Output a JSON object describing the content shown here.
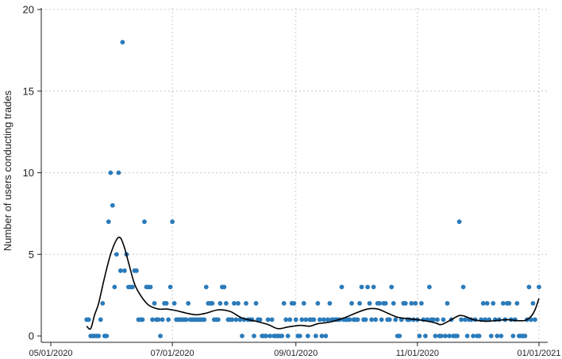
{
  "chart_data": {
    "type": "scatter",
    "title": "",
    "ylabel": "Number of users conducting trades",
    "xlabel": "",
    "ylim": [
      0,
      20
    ],
    "xlim": [
      "2020-05-01",
      "2021-01-01"
    ],
    "yticks": [
      0,
      5,
      10,
      15,
      20
    ],
    "xticks": [
      "05/01/2020",
      "07/01/2020",
      "09/01/2020",
      "11/01/2020",
      "01/01/2021"
    ],
    "xtick_dates": [
      "2020-05-01",
      "2020-07-01",
      "2020-09-01",
      "2020-11-01",
      "2021-01-01"
    ],
    "grid": true,
    "point_color": "#2b7bba",
    "trend_color": "#000000",
    "points": [
      [
        "2020-05-19",
        1
      ],
      [
        "2020-05-20",
        1
      ],
      [
        "2020-05-21",
        0
      ],
      [
        "2020-05-22",
        0
      ],
      [
        "2020-05-23",
        0
      ],
      [
        "2020-05-24",
        0
      ],
      [
        "2020-05-25",
        0
      ],
      [
        "2020-05-26",
        1
      ],
      [
        "2020-05-27",
        2
      ],
      [
        "2020-05-28",
        0
      ],
      [
        "2020-05-29",
        0
      ],
      [
        "2020-05-30",
        7
      ],
      [
        "2020-05-31",
        10
      ],
      [
        "2020-06-01",
        8
      ],
      [
        "2020-06-02",
        3
      ],
      [
        "2020-06-03",
        5
      ],
      [
        "2020-06-04",
        10
      ],
      [
        "2020-06-05",
        4
      ],
      [
        "2020-06-06",
        18
      ],
      [
        "2020-06-07",
        4
      ],
      [
        "2020-06-08",
        5
      ],
      [
        "2020-06-09",
        3
      ],
      [
        "2020-06-10",
        3
      ],
      [
        "2020-06-11",
        3
      ],
      [
        "2020-06-12",
        4
      ],
      [
        "2020-06-13",
        4
      ],
      [
        "2020-06-14",
        1
      ],
      [
        "2020-06-15",
        1
      ],
      [
        "2020-06-16",
        1
      ],
      [
        "2020-06-17",
        7
      ],
      [
        "2020-06-18",
        3
      ],
      [
        "2020-06-19",
        3
      ],
      [
        "2020-06-20",
        3
      ],
      [
        "2020-06-21",
        1
      ],
      [
        "2020-06-22",
        2
      ],
      [
        "2020-06-23",
        1
      ],
      [
        "2020-06-24",
        1
      ],
      [
        "2020-06-25",
        0
      ],
      [
        "2020-06-26",
        1
      ],
      [
        "2020-06-27",
        2
      ],
      [
        "2020-06-28",
        2
      ],
      [
        "2020-06-29",
        1
      ],
      [
        "2020-06-30",
        3
      ],
      [
        "2020-07-01",
        7
      ],
      [
        "2020-07-02",
        2
      ],
      [
        "2020-07-03",
        1
      ],
      [
        "2020-07-04",
        1
      ],
      [
        "2020-07-05",
        1
      ],
      [
        "2020-07-06",
        1
      ],
      [
        "2020-07-07",
        1
      ],
      [
        "2020-07-08",
        1
      ],
      [
        "2020-07-09",
        2
      ],
      [
        "2020-07-10",
        1
      ],
      [
        "2020-07-11",
        1
      ],
      [
        "2020-07-12",
        1
      ],
      [
        "2020-07-13",
        1
      ],
      [
        "2020-07-14",
        1
      ],
      [
        "2020-07-15",
        1
      ],
      [
        "2020-07-16",
        1
      ],
      [
        "2020-07-17",
        1
      ],
      [
        "2020-07-18",
        3
      ],
      [
        "2020-07-19",
        2
      ],
      [
        "2020-07-20",
        2
      ],
      [
        "2020-07-21",
        2
      ],
      [
        "2020-07-22",
        1
      ],
      [
        "2020-07-23",
        1
      ],
      [
        "2020-07-24",
        1
      ],
      [
        "2020-07-25",
        2
      ],
      [
        "2020-07-26",
        3
      ],
      [
        "2020-07-27",
        3
      ],
      [
        "2020-07-28",
        2
      ],
      [
        "2020-07-29",
        1
      ],
      [
        "2020-07-30",
        1
      ],
      [
        "2020-07-31",
        1
      ],
      [
        "2020-08-01",
        2
      ],
      [
        "2020-08-02",
        1
      ],
      [
        "2020-08-03",
        2
      ],
      [
        "2020-08-04",
        1
      ],
      [
        "2020-08-05",
        0
      ],
      [
        "2020-08-06",
        1
      ],
      [
        "2020-08-07",
        2
      ],
      [
        "2020-08-08",
        1
      ],
      [
        "2020-08-09",
        1
      ],
      [
        "2020-08-10",
        1
      ],
      [
        "2020-08-11",
        0
      ],
      [
        "2020-08-12",
        2
      ],
      [
        "2020-08-13",
        1
      ],
      [
        "2020-08-14",
        1
      ],
      [
        "2020-08-15",
        0
      ],
      [
        "2020-08-16",
        0
      ],
      [
        "2020-08-17",
        0
      ],
      [
        "2020-08-18",
        1
      ],
      [
        "2020-08-19",
        0
      ],
      [
        "2020-08-20",
        1
      ],
      [
        "2020-08-21",
        0
      ],
      [
        "2020-08-22",
        0
      ],
      [
        "2020-08-23",
        0
      ],
      [
        "2020-08-24",
        0
      ],
      [
        "2020-08-25",
        0
      ],
      [
        "2020-08-26",
        2
      ],
      [
        "2020-08-27",
        1
      ],
      [
        "2020-08-28",
        0
      ],
      [
        "2020-08-29",
        1
      ],
      [
        "2020-08-30",
        2
      ],
      [
        "2020-08-31",
        2
      ],
      [
        "2020-09-01",
        1
      ],
      [
        "2020-09-02",
        0
      ],
      [
        "2020-09-03",
        0
      ],
      [
        "2020-09-04",
        1
      ],
      [
        "2020-09-05",
        2
      ],
      [
        "2020-09-06",
        1
      ],
      [
        "2020-09-07",
        0
      ],
      [
        "2020-09-08",
        1
      ],
      [
        "2020-09-09",
        1
      ],
      [
        "2020-09-10",
        1
      ],
      [
        "2020-09-11",
        0
      ],
      [
        "2020-09-12",
        2
      ],
      [
        "2020-09-13",
        1
      ],
      [
        "2020-09-14",
        0
      ],
      [
        "2020-09-15",
        1
      ],
      [
        "2020-09-16",
        0
      ],
      [
        "2020-09-17",
        1
      ],
      [
        "2020-09-18",
        2
      ],
      [
        "2020-09-19",
        1
      ],
      [
        "2020-09-20",
        1
      ],
      [
        "2020-09-21",
        1
      ],
      [
        "2020-09-22",
        1
      ],
      [
        "2020-09-23",
        1
      ],
      [
        "2020-09-24",
        3
      ],
      [
        "2020-09-25",
        1
      ],
      [
        "2020-09-26",
        1
      ],
      [
        "2020-09-27",
        1
      ],
      [
        "2020-09-28",
        1
      ],
      [
        "2020-09-29",
        2
      ],
      [
        "2020-09-30",
        1
      ],
      [
        "2020-10-01",
        1
      ],
      [
        "2020-10-02",
        1
      ],
      [
        "2020-10-03",
        2
      ],
      [
        "2020-10-04",
        3
      ],
      [
        "2020-10-05",
        1
      ],
      [
        "2020-10-06",
        1
      ],
      [
        "2020-10-07",
        3
      ],
      [
        "2020-10-08",
        2
      ],
      [
        "2020-10-09",
        1
      ],
      [
        "2020-10-10",
        3
      ],
      [
        "2020-10-11",
        1
      ],
      [
        "2020-10-12",
        2
      ],
      [
        "2020-10-13",
        2
      ],
      [
        "2020-10-14",
        1
      ],
      [
        "2020-10-15",
        2
      ],
      [
        "2020-10-16",
        2
      ],
      [
        "2020-10-17",
        1
      ],
      [
        "2020-10-18",
        1
      ],
      [
        "2020-10-19",
        3
      ],
      [
        "2020-10-20",
        2
      ],
      [
        "2020-10-21",
        1
      ],
      [
        "2020-10-22",
        0
      ],
      [
        "2020-10-23",
        0
      ],
      [
        "2020-10-24",
        1
      ],
      [
        "2020-10-25",
        2
      ],
      [
        "2020-10-26",
        2
      ],
      [
        "2020-10-27",
        1
      ],
      [
        "2020-10-28",
        1
      ],
      [
        "2020-10-29",
        2
      ],
      [
        "2020-10-30",
        1
      ],
      [
        "2020-10-31",
        2
      ],
      [
        "2020-11-01",
        1
      ],
      [
        "2020-11-02",
        0
      ],
      [
        "2020-11-03",
        2
      ],
      [
        "2020-11-04",
        1
      ],
      [
        "2020-11-05",
        0
      ],
      [
        "2020-11-06",
        1
      ],
      [
        "2020-11-07",
        3
      ],
      [
        "2020-11-08",
        1
      ],
      [
        "2020-11-09",
        1
      ],
      [
        "2020-11-10",
        0
      ],
      [
        "2020-11-11",
        1
      ],
      [
        "2020-11-12",
        0
      ],
      [
        "2020-11-13",
        0
      ],
      [
        "2020-11-14",
        1
      ],
      [
        "2020-11-15",
        0
      ],
      [
        "2020-11-16",
        2
      ],
      [
        "2020-11-17",
        0
      ],
      [
        "2020-11-18",
        1
      ],
      [
        "2020-11-19",
        0
      ],
      [
        "2020-11-20",
        0
      ],
      [
        "2020-11-21",
        0
      ],
      [
        "2020-11-22",
        7
      ],
      [
        "2020-11-23",
        1
      ],
      [
        "2020-11-24",
        3
      ],
      [
        "2020-11-25",
        1
      ],
      [
        "2020-11-26",
        0
      ],
      [
        "2020-11-27",
        1
      ],
      [
        "2020-11-28",
        1
      ],
      [
        "2020-11-29",
        0
      ],
      [
        "2020-11-30",
        1
      ],
      [
        "2020-12-01",
        0
      ],
      [
        "2020-12-02",
        0
      ],
      [
        "2020-12-03",
        1
      ],
      [
        "2020-12-04",
        2
      ],
      [
        "2020-12-05",
        1
      ],
      [
        "2020-12-06",
        2
      ],
      [
        "2020-12-07",
        1
      ],
      [
        "2020-12-08",
        0
      ],
      [
        "2020-12-09",
        2
      ],
      [
        "2020-12-10",
        1
      ],
      [
        "2020-12-11",
        0
      ],
      [
        "2020-12-12",
        1
      ],
      [
        "2020-12-13",
        0
      ],
      [
        "2020-12-14",
        2
      ],
      [
        "2020-12-15",
        1
      ],
      [
        "2020-12-16",
        2
      ],
      [
        "2020-12-17",
        2
      ],
      [
        "2020-12-18",
        1
      ],
      [
        "2020-12-19",
        0
      ],
      [
        "2020-12-20",
        1
      ],
      [
        "2020-12-21",
        2
      ],
      [
        "2020-12-22",
        0
      ],
      [
        "2020-12-23",
        0
      ],
      [
        "2020-12-24",
        0
      ],
      [
        "2020-12-25",
        0
      ],
      [
        "2020-12-26",
        1
      ],
      [
        "2020-12-27",
        3
      ],
      [
        "2020-12-28",
        1
      ],
      [
        "2020-12-29",
        2
      ],
      [
        "2020-12-30",
        1
      ],
      [
        "2021-01-01",
        3
      ]
    ],
    "trend": [
      [
        "2020-05-19",
        0.6
      ],
      [
        "2020-05-21",
        0.45
      ],
      [
        "2020-05-23",
        1.3
      ],
      [
        "2020-05-25",
        2.0
      ],
      [
        "2020-05-28",
        3.6
      ],
      [
        "2020-05-31",
        5.0
      ],
      [
        "2020-06-03",
        5.9
      ],
      [
        "2020-06-05",
        6.0
      ],
      [
        "2020-06-07",
        5.4
      ],
      [
        "2020-06-09",
        4.5
      ],
      [
        "2020-06-12",
        3.2
      ],
      [
        "2020-06-15",
        2.5
      ],
      [
        "2020-06-19",
        1.9
      ],
      [
        "2020-06-24",
        1.65
      ],
      [
        "2020-06-28",
        1.65
      ],
      [
        "2020-07-03",
        1.55
      ],
      [
        "2020-07-08",
        1.4
      ],
      [
        "2020-07-13",
        1.3
      ],
      [
        "2020-07-18",
        1.4
      ],
      [
        "2020-07-24",
        1.6
      ],
      [
        "2020-07-30",
        1.5
      ],
      [
        "2020-08-05",
        1.1
      ],
      [
        "2020-08-12",
        0.9
      ],
      [
        "2020-08-18",
        0.7
      ],
      [
        "2020-08-23",
        0.45
      ],
      [
        "2020-08-28",
        0.55
      ],
      [
        "2020-09-03",
        0.65
      ],
      [
        "2020-09-08",
        0.6
      ],
      [
        "2020-09-12",
        0.75
      ],
      [
        "2020-09-18",
        0.85
      ],
      [
        "2020-09-25",
        1.1
      ],
      [
        "2020-10-01",
        1.4
      ],
      [
        "2020-10-07",
        1.65
      ],
      [
        "2020-10-12",
        1.65
      ],
      [
        "2020-10-17",
        1.4
      ],
      [
        "2020-10-22",
        1.15
      ],
      [
        "2020-10-28",
        1.05
      ],
      [
        "2020-11-04",
        0.95
      ],
      [
        "2020-11-10",
        0.8
      ],
      [
        "2020-11-13",
        0.7
      ],
      [
        "2020-11-18",
        1.0
      ],
      [
        "2020-11-22",
        1.25
      ],
      [
        "2020-11-25",
        1.2
      ],
      [
        "2020-11-29",
        1.0
      ],
      [
        "2020-12-05",
        0.9
      ],
      [
        "2020-12-11",
        0.95
      ],
      [
        "2020-12-16",
        1.0
      ],
      [
        "2020-12-20",
        0.95
      ],
      [
        "2020-12-25",
        0.95
      ],
      [
        "2020-12-28",
        1.2
      ],
      [
        "2020-12-30",
        1.6
      ],
      [
        "2021-01-01",
        2.3
      ]
    ]
  }
}
